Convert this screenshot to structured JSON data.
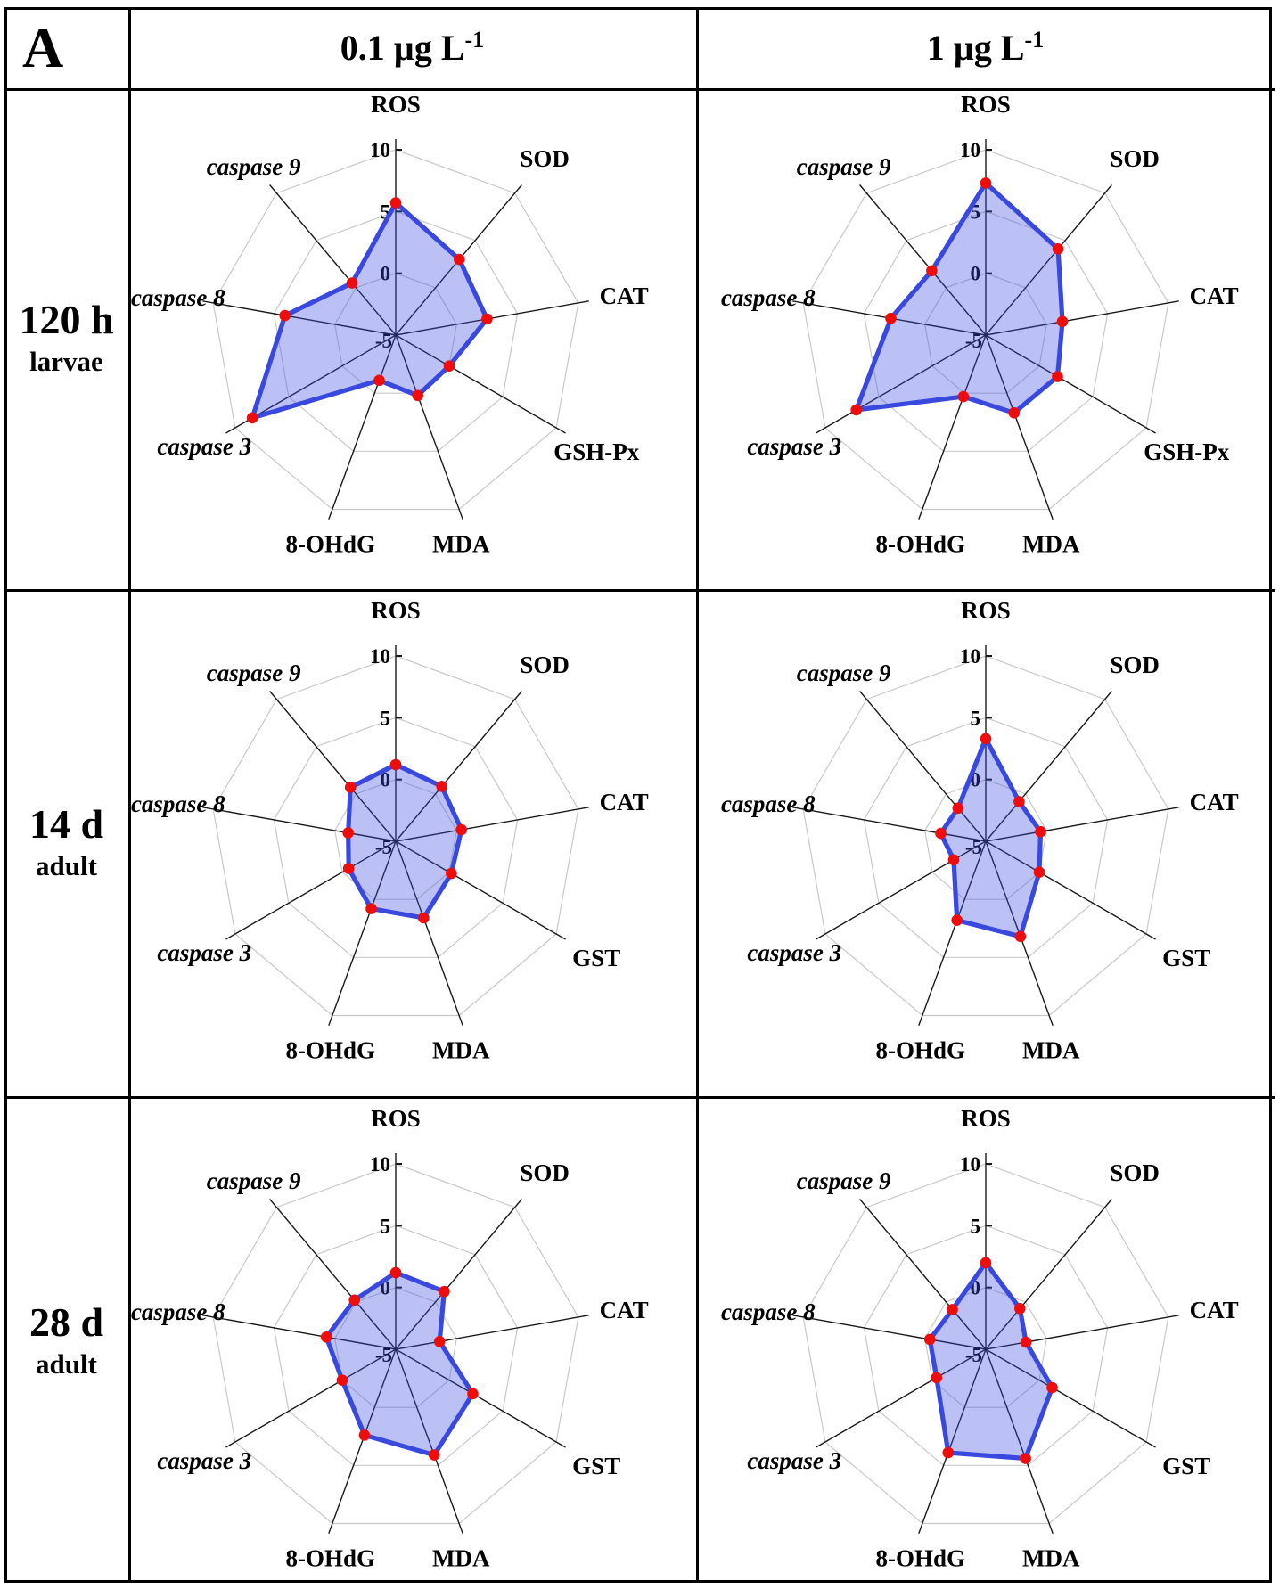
{
  "panel_label": "A",
  "header": {
    "columns": [
      {
        "text": "0.1 µg L",
        "sup": "-1"
      },
      {
        "text": "1 µg L",
        "sup": "-1"
      }
    ]
  },
  "rows": [
    {
      "time": "120 h",
      "stage": "larvae"
    },
    {
      "time": "14 d",
      "stage": "adult"
    },
    {
      "time": "28 d",
      "stage": "adult"
    }
  ],
  "chart_data": [
    {
      "type": "radar",
      "row_label": "120 h larvae",
      "column_label": "0.1 µg L-1",
      "axes": [
        "ROS",
        "SOD",
        "CAT",
        "GSH-Px",
        "MDA",
        "8-OHdG",
        "caspase 3",
        "caspase 8",
        "caspase 9"
      ],
      "values": [
        5.7,
        3.0,
        2.5,
        0.0,
        0.2,
        -1.1,
        8.4,
        4.1,
        0.5
      ],
      "scale": {
        "min": -5,
        "max": 10,
        "ticks": [
          10,
          5,
          0,
          -5
        ]
      }
    },
    {
      "type": "radar",
      "row_label": "120 h larvae",
      "column_label": "1 µg L-1",
      "axes": [
        "ROS",
        "SOD",
        "CAT",
        "GSH-Px",
        "MDA",
        "8-OHdG",
        "caspase 3",
        "caspase 8",
        "caspase 9"
      ],
      "values": [
        7.3,
        4.1,
        1.3,
        1.7,
        1.7,
        0.3,
        7.1,
        2.8,
        1.8
      ],
      "scale": {
        "min": -5,
        "max": 10,
        "ticks": [
          10,
          5,
          0,
          -5
        ]
      }
    },
    {
      "type": "radar",
      "row_label": "14 d adult",
      "column_label": "0.1 µg L-1",
      "axes": [
        "ROS",
        "SOD",
        "CAT",
        "GST",
        "MDA",
        "8-OHdG",
        "caspase 3",
        "caspase 8",
        "caspase 9"
      ],
      "values": [
        1.2,
        0.8,
        0.4,
        0.2,
        1.6,
        0.8,
        -0.6,
        -1.1,
        0.7
      ],
      "scale": {
        "min": -5,
        "max": 10,
        "ticks": [
          10,
          5,
          0,
          -5
        ]
      }
    },
    {
      "type": "radar",
      "row_label": "14 d adult",
      "column_label": "1 µg L-1",
      "axes": [
        "ROS",
        "SOD",
        "CAT",
        "GST",
        "MDA",
        "8-OHdG",
        "caspase 3",
        "caspase 8",
        "caspase 9"
      ],
      "values": [
        3.3,
        -0.8,
        -0.5,
        0.0,
        3.2,
        1.8,
        -2.0,
        -1.3,
        -1.5
      ],
      "scale": {
        "min": -5,
        "max": 10,
        "ticks": [
          10,
          5,
          0,
          -5
        ]
      }
    },
    {
      "type": "radar",
      "row_label": "28 d adult",
      "column_label": "0.1 µg L-1",
      "axes": [
        "ROS",
        "SOD",
        "CAT",
        "GST",
        "MDA",
        "8-OHdG",
        "caspase 3",
        "caspase 8",
        "caspase 9"
      ],
      "values": [
        1.2,
        1.1,
        -1.4,
        2.2,
        4.1,
        2.4,
        0.0,
        0.7,
        0.2
      ],
      "scale": {
        "min": -5,
        "max": 10,
        "ticks": [
          10,
          5,
          0,
          -5
        ]
      }
    },
    {
      "type": "radar",
      "row_label": "28 d adult",
      "column_label": "1 µg L-1",
      "axes": [
        "ROS",
        "SOD",
        "CAT",
        "GST",
        "MDA",
        "8-OHdG",
        "caspase 3",
        "caspase 8",
        "caspase 9"
      ],
      "values": [
        2.0,
        -0.7,
        -1.7,
        1.2,
        4.4,
        3.9,
        -0.4,
        -0.4,
        -0.8
      ],
      "scale": {
        "min": -5,
        "max": 10,
        "ticks": [
          10,
          5,
          0,
          -5
        ]
      }
    }
  ],
  "colors": {
    "polygon_stroke": "#3a49dd",
    "polygon_fill": "rgba(60,76,224,0.35)",
    "point": "#ee0d0d",
    "grid": "#c9c9c9",
    "spoke": "#1a1a1a",
    "text": "#000000"
  }
}
